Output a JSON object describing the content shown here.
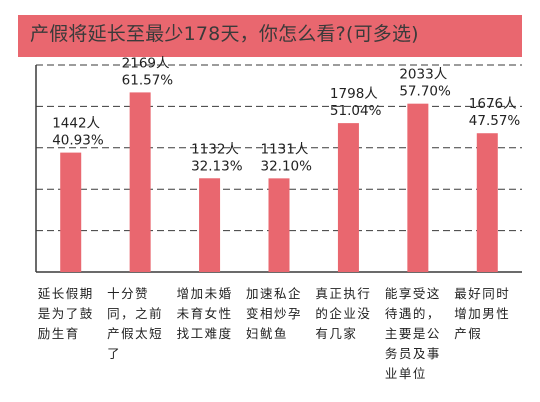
{
  "title": "产假将延长至最少178天，你怎么看?(可多选)",
  "colors": {
    "accent": "#e9676f",
    "bar": "#e9676f",
    "grid": "#3a3a3a",
    "text": "#222222"
  },
  "chart_data": {
    "type": "bar",
    "title": "产假将延长至最少178天，你怎么看?(可多选)",
    "categories": [
      "延长假期是为了鼓励生育",
      "十分赞同，之前产假太短了",
      "增加未婚未育女性找工难度",
      "加速私企变相炒孕妇鱿鱼",
      "真正执行的企业没有几家",
      "能享受这待遇的，主要是公务员及事业单位",
      "最好同时增加男性产假"
    ],
    "values": [
      1442,
      2169,
      1132,
      1131,
      1798,
      2033,
      1676
    ],
    "count_labels": [
      "1442人",
      "2169人",
      "1132人",
      "1131人",
      "1798人",
      "2033人",
      "1676人"
    ],
    "percent_labels": [
      "40.93%",
      "61.57%",
      "32.13%",
      "32.10%",
      "51.04%",
      "57.70%",
      "47.57%"
    ],
    "percents": [
      40.93,
      61.57,
      32.13,
      32.1,
      51.04,
      57.7,
      47.57
    ],
    "ylim": [
      0,
      2500
    ],
    "grid": true,
    "legend": "none",
    "xlabel": "",
    "ylabel": ""
  }
}
